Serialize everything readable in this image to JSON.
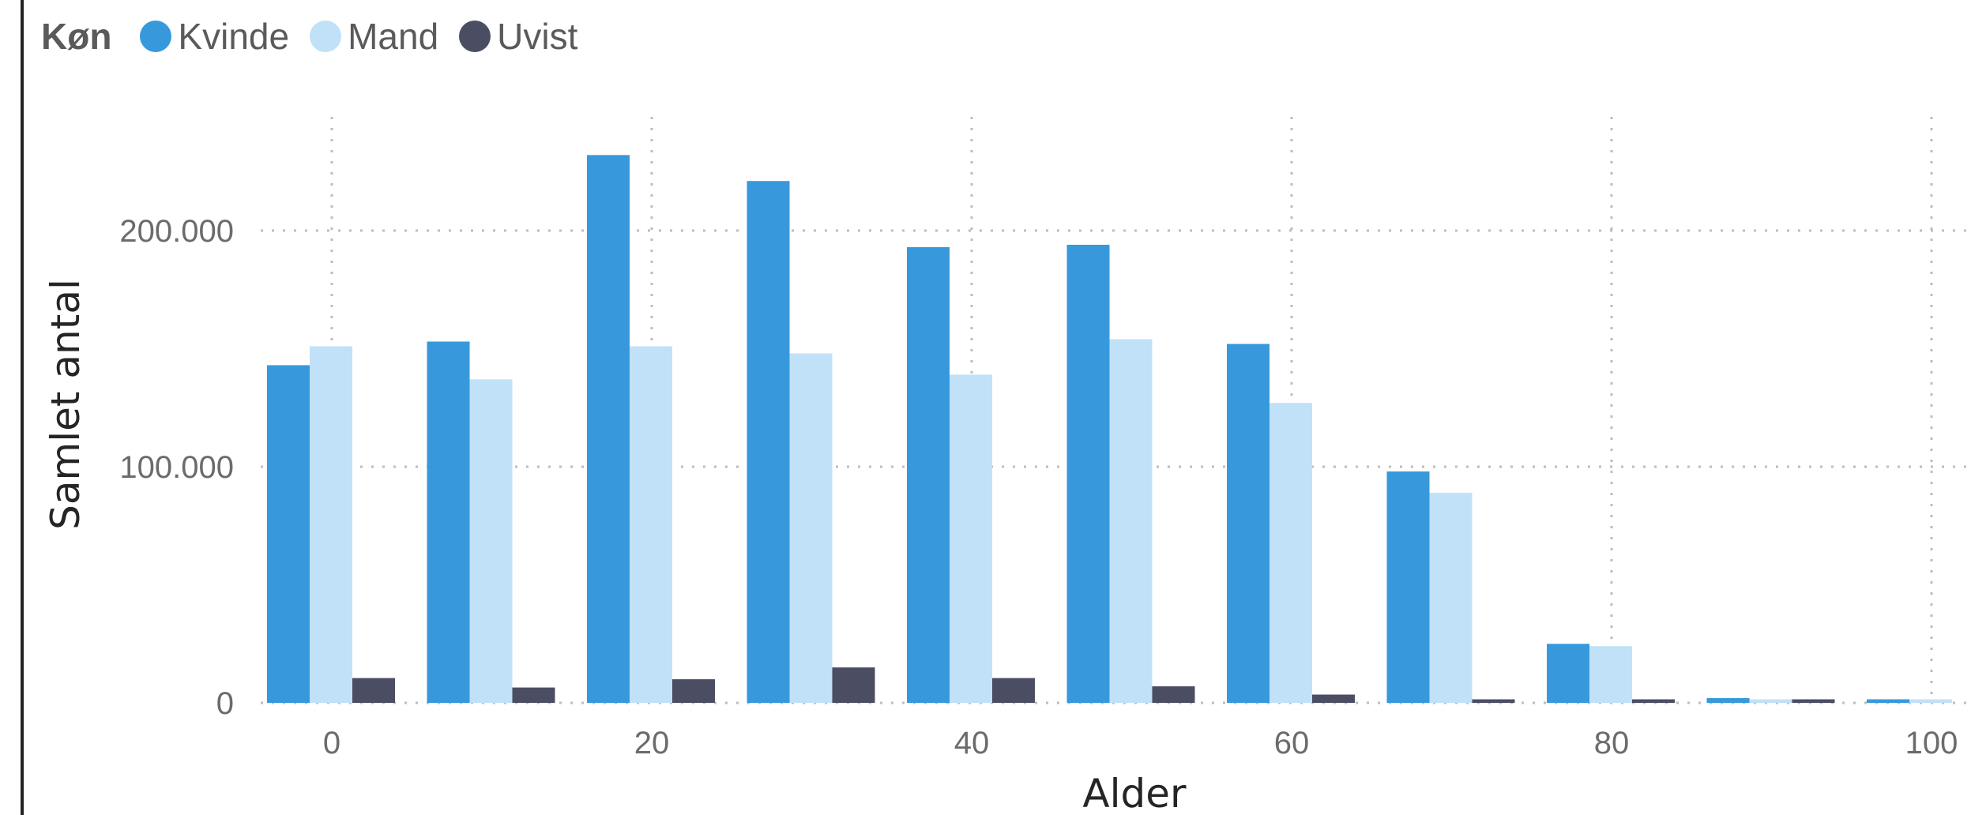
{
  "legend": {
    "title": "Køn",
    "items": [
      {
        "label": "Kvinde",
        "color": "#3799db"
      },
      {
        "label": "Mand",
        "color": "#c1e1f8"
      },
      {
        "label": "Uvist",
        "color": "#4b4d63"
      }
    ]
  },
  "chart_data": {
    "type": "bar",
    "xlabel": "Alder",
    "ylabel": "Samlet antal",
    "xlim": [
      -4,
      100
    ],
    "ylim": [
      0,
      240000
    ],
    "xticks": [
      0,
      20,
      40,
      60,
      80,
      100
    ],
    "yticks": [
      0,
      100000,
      200000
    ],
    "ytick_labels": [
      "0",
      "100.000",
      "200.000"
    ],
    "grid": true,
    "legend_position": "top-left",
    "bin_width": 10,
    "x": [
      0,
      10,
      20,
      30,
      40,
      50,
      60,
      70,
      80,
      90,
      100
    ],
    "series": [
      {
        "name": "Kvinde",
        "color": "#3799db",
        "values": [
          143000,
          153000,
          232000,
          221000,
          193000,
          194000,
          152000,
          98000,
          25000,
          2000,
          1500
        ]
      },
      {
        "name": "Mand",
        "color": "#c1e1f8",
        "values": [
          151000,
          137000,
          151000,
          148000,
          139000,
          154000,
          127000,
          89000,
          24000,
          1500,
          1500
        ]
      },
      {
        "name": "Uvist",
        "color": "#4b4d63",
        "values": [
          10500,
          6500,
          10000,
          15000,
          10500,
          7000,
          3500,
          1500,
          1500,
          1500,
          0
        ]
      }
    ]
  }
}
